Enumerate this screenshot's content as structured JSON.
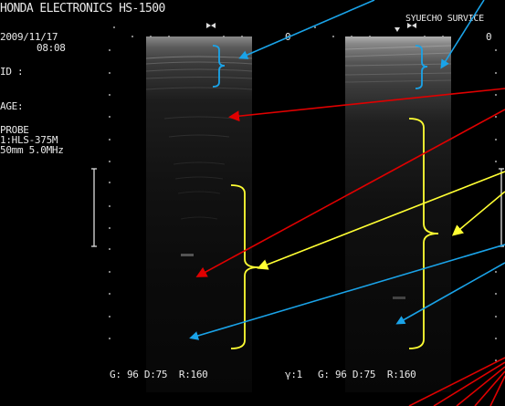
{
  "header": {
    "title": "HONDA ELECTRONICS HS-1500",
    "service": "SYUECHO SURVICE"
  },
  "patient": {
    "date": "2009/11/17",
    "time": "08:08",
    "id_label": "ID :",
    "age_label": "AGE:"
  },
  "probe": {
    "label": "PROBE",
    "model": "1:HLS-375M",
    "spec": "50mm 5.0MHz"
  },
  "left_image": {
    "depth_label": "0",
    "params": "G: 96 D:75  R:160"
  },
  "right_image": {
    "depth_label": "0",
    "gamma": "γ:1",
    "params": "G: 96 D:75  R:160"
  },
  "colors": {
    "blue_arrow": "#1aa3e8",
    "red_arrow": "#e00000",
    "yellow_bracket": "#ffff33"
  }
}
